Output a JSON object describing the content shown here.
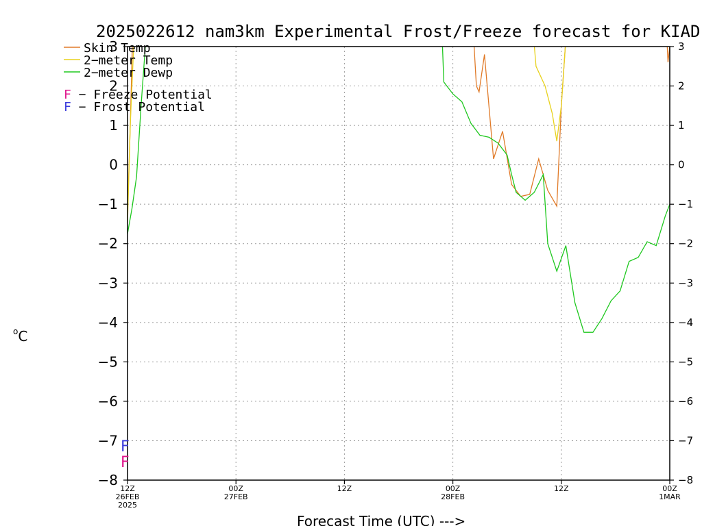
{
  "chart_data": {
    "type": "line",
    "title": "2025022612 nam3km Experimental Frost/Freeze forecast for KIAD",
    "xlabel": "Forecast Time (UTC) --->",
    "ylabel_unit": "o",
    "ylabel_letter": "C",
    "ylim": [
      -8,
      3
    ],
    "xlim": [
      0,
      60
    ],
    "yticks": [
      3,
      2,
      1,
      0,
      -1,
      -2,
      -3,
      -4,
      -5,
      -6,
      -7,
      -8
    ],
    "ytick_labels": [
      "3",
      "2",
      "1",
      "0",
      "−1",
      "−2",
      "−3",
      "−4",
      "−5",
      "−6",
      "−7",
      "−8"
    ],
    "xticks": [
      {
        "x": 0,
        "lines": [
          "12Z",
          "26FEB",
          "2025"
        ]
      },
      {
        "x": 12,
        "lines": [
          "00Z",
          "27FEB"
        ]
      },
      {
        "x": 24,
        "lines": [
          "12Z"
        ]
      },
      {
        "x": 36,
        "lines": [
          "00Z",
          "28FEB"
        ]
      },
      {
        "x": 48,
        "lines": [
          "12Z"
        ]
      },
      {
        "x": 60,
        "lines": [
          "00Z",
          "1MAR"
        ]
      }
    ],
    "grid": true,
    "legend": [
      {
        "label": "Skin Temp",
        "color": "#e07a28"
      },
      {
        "label": "2−meter Temp",
        "color": "#e8d21e"
      },
      {
        "label": "2−meter Dewp",
        "color": "#1ec81e"
      }
    ],
    "potential_legend": [
      {
        "letter": "F",
        "text": "− Freeze Potential",
        "color": "#e0148c"
      },
      {
        "letter": "F",
        "text": "− Frost Potential",
        "color": "#3c3cdc"
      }
    ],
    "markers": [
      {
        "letter": "F",
        "x": 0,
        "y": -7.1,
        "color": "#3c3cdc"
      },
      {
        "letter": "F",
        "x": 0,
        "y": -7.5,
        "color": "#e0148c"
      }
    ],
    "series": [
      {
        "name": "Skin Temp",
        "color": "#e07a28",
        "segments": [
          [
            [
              0,
              -1.3
            ],
            [
              0.3,
              1.0
            ],
            [
              0.6,
              3.6
            ]
          ],
          [
            [
              38.2,
              3.6
            ],
            [
              38.6,
              2.0
            ],
            [
              38.9,
              1.85
            ],
            [
              39.5,
              2.8
            ],
            [
              40.5,
              0.15
            ],
            [
              41.5,
              0.85
            ],
            [
              42.5,
              -0.5
            ],
            [
              43.5,
              -0.8
            ],
            [
              44.5,
              -0.75
            ],
            [
              45.5,
              0.15
            ],
            [
              46.5,
              -0.65
            ],
            [
              47.5,
              -1.05
            ],
            [
              48.0,
              1.5
            ],
            [
              48.5,
              3.2
            ]
          ],
          [
            [
              59.6,
              3.6
            ],
            [
              59.8,
              2.6
            ],
            [
              60,
              3.0
            ]
          ]
        ]
      },
      {
        "name": "2−meter Temp",
        "color": "#e8d21e",
        "segments": [
          [
            [
              0,
              -1.5
            ],
            [
              0.3,
              1.0
            ],
            [
              0.8,
              3.6
            ]
          ],
          [
            [
              44.8,
              3.6
            ],
            [
              45.2,
              2.5
            ],
            [
              46.2,
              2.0
            ],
            [
              47.0,
              1.3
            ],
            [
              47.5,
              0.6
            ],
            [
              48.0,
              1.5
            ],
            [
              48.5,
              3.2
            ]
          ]
        ]
      },
      {
        "name": "2−meter Dewp",
        "color": "#1ec81e",
        "segments": [
          [
            [
              0,
              -1.75
            ],
            [
              0.5,
              -1.1
            ],
            [
              1.0,
              -0.3
            ],
            [
              1.5,
              1.5
            ],
            [
              2.0,
              3.1
            ]
          ],
          [
            [
              34.8,
              3.3
            ],
            [
              35.0,
              2.1
            ],
            [
              36.0,
              1.8
            ],
            [
              37.0,
              1.6
            ],
            [
              38.0,
              1.05
            ],
            [
              39.0,
              0.75
            ],
            [
              40.0,
              0.7
            ],
            [
              41.0,
              0.55
            ],
            [
              42.0,
              0.25
            ],
            [
              42.5,
              -0.25
            ],
            [
              43.0,
              -0.7
            ],
            [
              44.0,
              -0.9
            ],
            [
              45.0,
              -0.7
            ],
            [
              46.0,
              -0.25
            ],
            [
              46.5,
              -2.0
            ],
            [
              47.5,
              -2.7
            ],
            [
              48.5,
              -2.05
            ],
            [
              49.5,
              -3.5
            ],
            [
              50.5,
              -4.25
            ],
            [
              51.5,
              -4.25
            ],
            [
              52.5,
              -3.9
            ],
            [
              53.5,
              -3.45
            ],
            [
              54.5,
              -3.2
            ],
            [
              55.5,
              -2.45
            ],
            [
              56.5,
              -2.35
            ],
            [
              57.5,
              -1.95
            ],
            [
              58.5,
              -2.05
            ],
            [
              59.5,
              -1.3
            ],
            [
              60,
              -1.0
            ]
          ]
        ]
      }
    ]
  }
}
